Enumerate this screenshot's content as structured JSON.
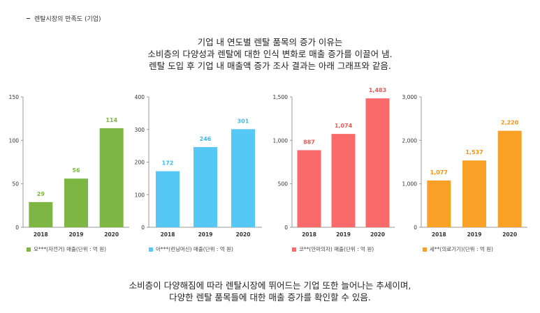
{
  "header": {
    "title": "렌탈시장의 만족도 (기업)"
  },
  "intro": {
    "lines": [
      "기업 내 연도별 렌탈 품목의 증가 이유는",
      "소비층의 다양성과 렌탈에 대한 인식 변화로 매출 증가를 이끌어 냄.",
      "렌탈 도입 후 기업 내 매출액 증가 조사 결과는 아래 그래프와 같음."
    ]
  },
  "outro": {
    "lines": [
      "소비층이 다양해짐에 따라 렌탈시장에 뛰어드는 기업 또한 늘어나는 추세이며,",
      "다양한 렌탈 품목들에 대한 매출 증가를 확인할 수 있음."
    ]
  },
  "chart_data": [
    {
      "type": "bar",
      "categories": [
        "2018",
        "2019",
        "2020"
      ],
      "series": [
        {
          "name": "모***(자전거) 매출(단위 : 억 원)",
          "values": [
            29,
            56,
            114
          ],
          "labels": [
            "29",
            "56",
            "114"
          ]
        }
      ],
      "ylim": [
        0,
        150
      ],
      "yticks": [
        0,
        50,
        100,
        150
      ],
      "ytick_labels": [
        "0",
        "50",
        "100",
        "150"
      ],
      "color": "#7db643",
      "label_color": "#7db643",
      "grid": false,
      "legend": "bottom-left"
    },
    {
      "type": "bar",
      "categories": [
        "2018",
        "2019",
        "2020"
      ],
      "series": [
        {
          "name": "아***(런닝머신) 매출(단위 : 억 원)",
          "values": [
            172,
            246,
            301
          ],
          "labels": [
            "172",
            "246",
            "301"
          ]
        }
      ],
      "ylim": [
        0,
        400
      ],
      "yticks": [
        0,
        100,
        200,
        300,
        400
      ],
      "ytick_labels": [
        "0",
        "100",
        "200",
        "300",
        "400"
      ],
      "color": "#55c8f5",
      "label_color": "#3fb8ee",
      "grid": false,
      "legend": "bottom-left"
    },
    {
      "type": "bar",
      "categories": [
        "2018",
        "2019",
        "2020"
      ],
      "series": [
        {
          "name": "코**(안마의자) 매출(단위 : 억 원)",
          "values": [
            887,
            1074,
            1483
          ],
          "labels": [
            "887",
            "1,074",
            "1,483"
          ]
        }
      ],
      "ylim": [
        0,
        1500
      ],
      "yticks": [
        0,
        500,
        1000,
        1500
      ],
      "ytick_labels": [
        "0",
        "500",
        "1,000",
        "1,500"
      ],
      "color": "#fb6a6a",
      "label_color": "#f05858",
      "grid": false,
      "legend": "bottom-left"
    },
    {
      "type": "bar",
      "categories": [
        "2018",
        "2019",
        "2020"
      ],
      "series": [
        {
          "name": "세**(의료기기)(단위 : 억 원)",
          "values": [
            1077,
            1537,
            2220
          ],
          "labels": [
            "1,077",
            "1,537",
            "2,220"
          ]
        }
      ],
      "ylim": [
        0,
        3000
      ],
      "yticks": [
        0,
        1000,
        2000,
        3000
      ],
      "ytick_labels": [
        "0",
        "1,000",
        "2,000",
        "3,000"
      ],
      "color": "#f9a026",
      "label_color": "#f39314",
      "grid": false,
      "legend": "bottom-left"
    }
  ]
}
